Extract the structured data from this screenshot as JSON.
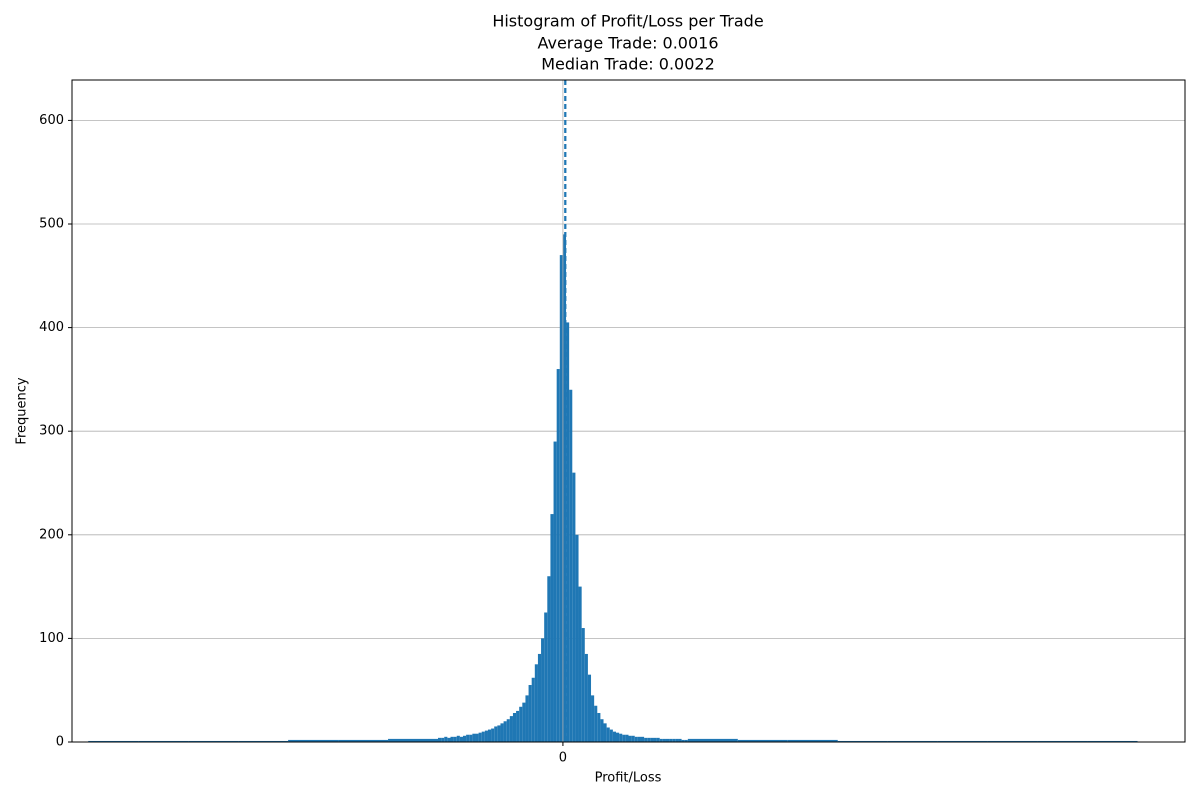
{
  "chart_data": {
    "type": "histogram",
    "title": [
      "Histogram of Profit/Loss per Trade",
      "Average Trade: 0.0016",
      "Median Trade: 0.0022"
    ],
    "xlabel": "Profit/Loss",
    "ylabel": "Frequency",
    "bins": [
      -0.38,
      -0.34,
      -0.3,
      -0.26,
      -0.22,
      -0.18,
      -0.14,
      -0.1,
      -0.0975,
      -0.095,
      -0.0925,
      -0.09,
      -0.0875,
      -0.085,
      -0.0825,
      -0.08,
      -0.0775,
      -0.075,
      -0.0725,
      -0.07,
      -0.0675,
      -0.065,
      -0.0625,
      -0.06,
      -0.0575,
      -0.055,
      -0.0525,
      -0.05,
      -0.0475,
      -0.045,
      -0.0425,
      -0.04,
      -0.0375,
      -0.035,
      -0.0325,
      -0.03,
      -0.0275,
      -0.025,
      -0.0225,
      -0.02,
      -0.0175,
      -0.015,
      -0.0125,
      -0.01,
      -0.0075,
      -0.005,
      -0.0025,
      0,
      0.0025,
      0.005,
      0.0075,
      0.01,
      0.0125,
      0.015,
      0.0175,
      0.02,
      0.0225,
      0.025,
      0.0275,
      0.03,
      0.0325,
      0.035,
      0.0375,
      0.04,
      0.0425,
      0.045,
      0.0475,
      0.05,
      0.0525,
      0.055,
      0.0575,
      0.06,
      0.0625,
      0.065,
      0.0675,
      0.07,
      0.0725,
      0.075,
      0.0775,
      0.08,
      0.0825,
      0.085,
      0.0875,
      0.09,
      0.0925,
      0.095,
      0.0975,
      0.1,
      0.14,
      0.18,
      0.22,
      0.26,
      0.3,
      0.34,
      0.38,
      0.42,
      0.46
    ],
    "counts": [
      1,
      1,
      1,
      1,
      2,
      2,
      3,
      4,
      4,
      5,
      4,
      5,
      5,
      6,
      5,
      6,
      7,
      7,
      8,
      8,
      9,
      10,
      11,
      12,
      13,
      15,
      16,
      18,
      20,
      22,
      25,
      28,
      30,
      34,
      38,
      45,
      55,
      62,
      75,
      85,
      100,
      125,
      160,
      220,
      290,
      360,
      470,
      490,
      405,
      340,
      260,
      200,
      150,
      110,
      85,
      65,
      45,
      35,
      28,
      22,
      18,
      14,
      12,
      10,
      9,
      8,
      7,
      7,
      6,
      6,
      5,
      5,
      5,
      4,
      4,
      4,
      4,
      4,
      3,
      3,
      3,
      3,
      3,
      3,
      3,
      2,
      2,
      3,
      2,
      2,
      1,
      1,
      1,
      1,
      1,
      1
    ],
    "color": "#1f77b4",
    "reference_lines": [
      {
        "value": 0.0016,
        "color": "#1f77b4"
      },
      {
        "value": 0.0022,
        "color": "#1f77b4"
      }
    ],
    "xlim": [
      -0.393,
      0.498
    ],
    "ylim": [
      0,
      639
    ],
    "xticks": [
      0
    ],
    "yticks": [
      0,
      100,
      200,
      300,
      400,
      500,
      600
    ],
    "grid": true
  }
}
